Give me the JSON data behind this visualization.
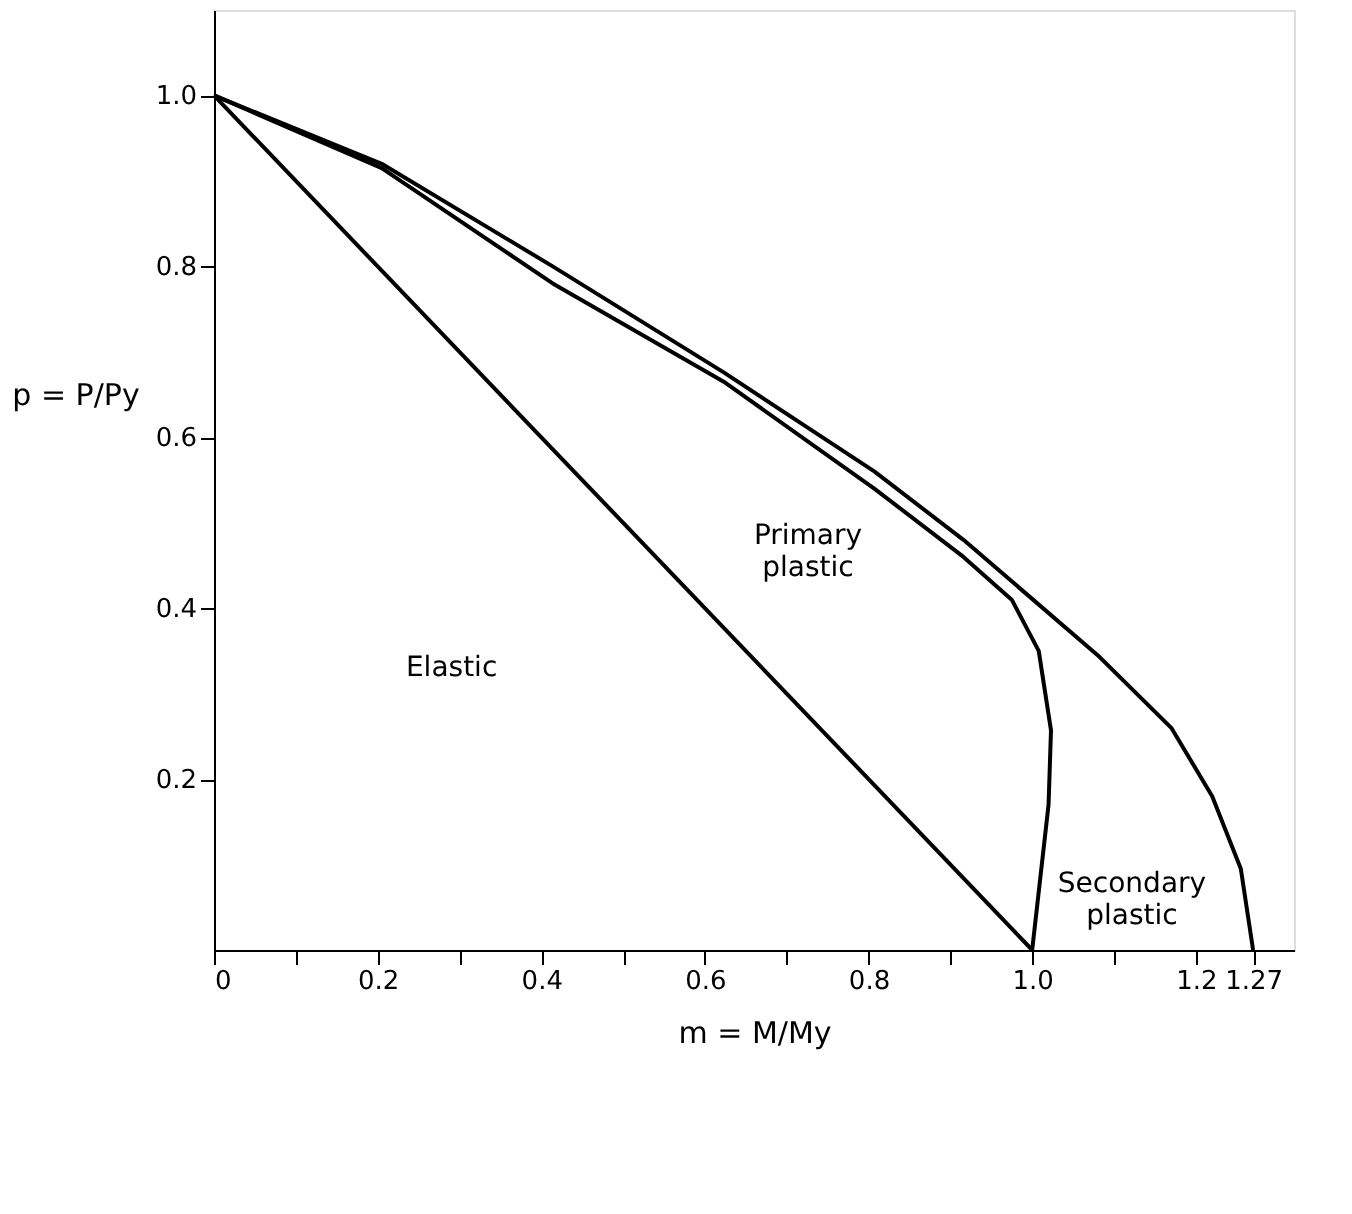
{
  "chart_data": {
    "type": "line",
    "xlabel": "m = M/My",
    "ylabel": "p = P/Py",
    "xlim": [
      0,
      1.32
    ],
    "ylim": [
      0,
      1.1
    ],
    "xticks": [
      {
        "value": 0,
        "label": "0"
      },
      {
        "value": 0.1,
        "label": null
      },
      0.2,
      {
        "value": 0.3,
        "label": null
      },
      0.4,
      {
        "value": 0.5,
        "label": null
      },
      0.6,
      {
        "value": 0.7,
        "label": null
      },
      0.8,
      {
        "value": 0.9,
        "label": null
      },
      {
        "value": 1.0,
        "label": "1.0"
      },
      {
        "value": 1.1,
        "label": null
      },
      1.2,
      1.27
    ],
    "yticks": [
      0.2,
      0.4,
      0.6,
      0.8,
      {
        "value": 1.0,
        "label": "1.0"
      }
    ],
    "grid": false,
    "marker": "none",
    "line_style": "solid",
    "series": [
      {
        "color": "#000000",
        "x": [
          0,
          1.0
        ],
        "values": [
          1.0,
          0
        ]
      },
      {
        "color": "#000000",
        "x": [
          0,
          0.205,
          0.414,
          0.623,
          0.807,
          0.916,
          0.975,
          1.008,
          1.023,
          1.02,
          1.0
        ],
        "values": [
          1.0,
          0.915,
          0.78,
          0.665,
          0.54,
          0.46,
          0.41,
          0.35,
          0.257,
          0.17,
          0
        ]
      },
      {
        "color": "#000000",
        "x": [
          0,
          0.205,
          0.414,
          0.623,
          0.807,
          0.916,
          1.08,
          1.17,
          1.22,
          1.255,
          1.27
        ],
        "values": [
          1.0,
          0.92,
          0.8,
          0.676,
          0.56,
          0.48,
          0.345,
          0.26,
          0.18,
          0.095,
          0
        ]
      }
    ],
    "annotations": [
      "Elastic",
      "Primary\nplastic",
      "Secondary\nplastic"
    ]
  }
}
